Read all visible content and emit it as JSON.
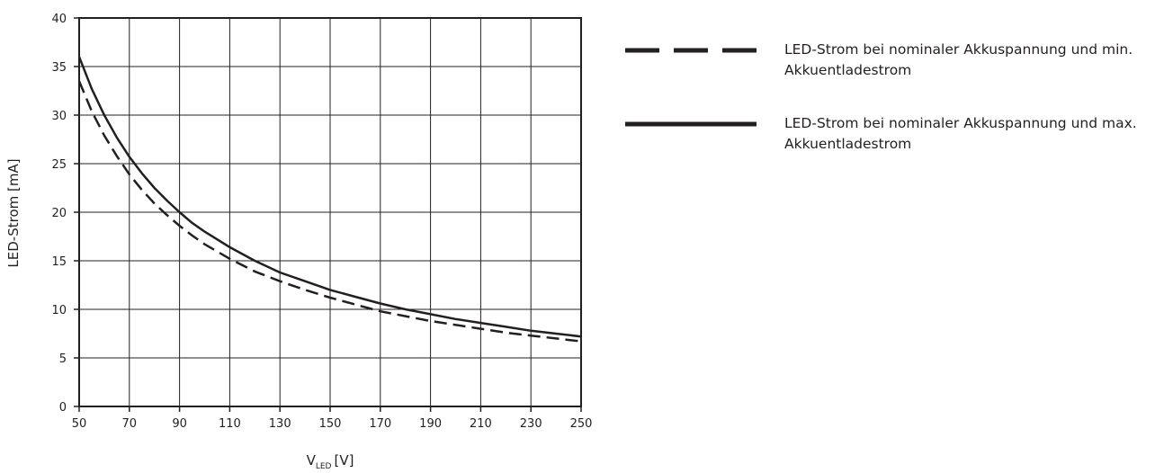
{
  "chart_data": {
    "type": "line",
    "title": "",
    "xlabel": "V",
    "xlabel_sub": "LED",
    "xlabel_unit": "[V]",
    "ylabel": "LED-Strom [mA]",
    "xlim": [
      50,
      250
    ],
    "ylim": [
      0,
      40
    ],
    "xticks": [
      50,
      70,
      90,
      110,
      130,
      150,
      170,
      190,
      210,
      230,
      250
    ],
    "yticks": [
      0,
      5,
      10,
      15,
      20,
      25,
      30,
      35,
      40
    ],
    "grid": true,
    "legend_position": "right",
    "x": [
      50,
      55,
      60,
      65,
      70,
      75,
      80,
      85,
      90,
      95,
      100,
      110,
      120,
      130,
      140,
      150,
      160,
      170,
      180,
      190,
      200,
      210,
      220,
      230,
      240,
      250
    ],
    "series": [
      {
        "name": "LED-Strom bei nominaler Akkuspannung und min. Akkuentladestrom",
        "style": "dashed",
        "color": "#231f20",
        "values": [
          33.5,
          30.4,
          27.9,
          25.8,
          23.9,
          22.3,
          20.9,
          19.7,
          18.6,
          17.6,
          16.7,
          15.2,
          13.9,
          12.9,
          12.0,
          11.2,
          10.5,
          9.8,
          9.3,
          8.8,
          8.4,
          8.0,
          7.6,
          7.3,
          7.0,
          6.7
        ]
      },
      {
        "name": "LED-Strom bei nominaler Akkuspannung und max. Akkuentladestrom",
        "style": "solid",
        "color": "#231f20",
        "values": [
          36.0,
          32.7,
          30.0,
          27.7,
          25.7,
          24.0,
          22.5,
          21.2,
          20.0,
          18.9,
          18.0,
          16.4,
          15.0,
          13.8,
          12.9,
          12.0,
          11.3,
          10.6,
          10.0,
          9.5,
          9.0,
          8.6,
          8.2,
          7.8,
          7.5,
          7.2
        ]
      }
    ]
  }
}
